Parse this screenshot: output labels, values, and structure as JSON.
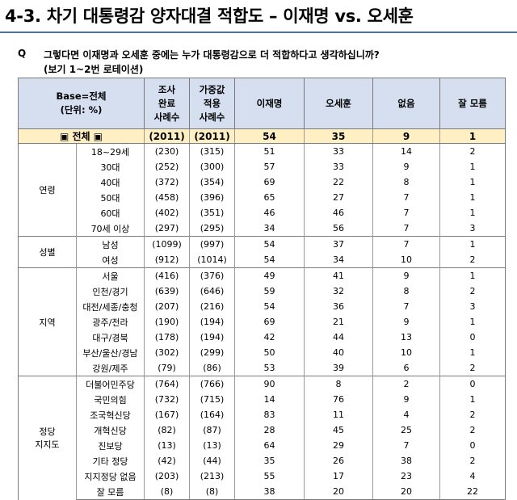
{
  "title": "4-3. 차기 대통령감 양자대결 적합도 – 이재명 vs. 오세훈",
  "question": {
    "marker": "Q",
    "text": "그렇다면 이재명과 오세훈 중에는 누가 대통령감으로 더 적합하다고 생각하십니까?",
    "note": "(보기 1~2번 로테이션)"
  },
  "header": {
    "base_line1": "Base=전체",
    "base_line2": "(단위: %)",
    "survey_l1": "조사",
    "survey_l2": "완료",
    "survey_l3": "사례수",
    "weighted_l1": "가중값",
    "weighted_l2": "적용",
    "weighted_l3": "사례수",
    "c1": "이재명",
    "c2": "오세훈",
    "c3": "없음",
    "c4": "잘 모름"
  },
  "total": {
    "label": "▣ 전체 ▣",
    "survey": "(2011)",
    "weighted": "(2011)",
    "v": [
      "54",
      "35",
      "9",
      "1"
    ]
  },
  "groups": {
    "age": "연령",
    "gender": "성별",
    "region": "지역",
    "party_l1": "정당",
    "party_l2": "지지도"
  },
  "rows": [
    {
      "label": "18~29세",
      "survey": "(230)",
      "weighted": "(315)",
      "v": [
        "51",
        "33",
        "14",
        "2"
      ]
    },
    {
      "label": "30대",
      "survey": "(252)",
      "weighted": "(300)",
      "v": [
        "57",
        "33",
        "9",
        "1"
      ]
    },
    {
      "label": "40대",
      "survey": "(372)",
      "weighted": "(354)",
      "v": [
        "69",
        "22",
        "8",
        "1"
      ]
    },
    {
      "label": "50대",
      "survey": "(458)",
      "weighted": "(396)",
      "v": [
        "65",
        "27",
        "7",
        "1"
      ]
    },
    {
      "label": "60대",
      "survey": "(402)",
      "weighted": "(351)",
      "v": [
        "46",
        "46",
        "7",
        "1"
      ]
    },
    {
      "label": "70세 이상",
      "survey": "(297)",
      "weighted": "(295)",
      "v": [
        "34",
        "56",
        "7",
        "3"
      ]
    },
    {
      "label": "남성",
      "survey": "(1099)",
      "weighted": "(997)",
      "v": [
        "54",
        "37",
        "7",
        "1"
      ]
    },
    {
      "label": "여성",
      "survey": "(912)",
      "weighted": "(1014)",
      "v": [
        "54",
        "34",
        "10",
        "2"
      ]
    },
    {
      "label": "서울",
      "survey": "(416)",
      "weighted": "(376)",
      "v": [
        "49",
        "41",
        "9",
        "1"
      ]
    },
    {
      "label": "인천/경기",
      "survey": "(639)",
      "weighted": "(646)",
      "v": [
        "59",
        "32",
        "8",
        "2"
      ]
    },
    {
      "label": "대전/세종/충청",
      "survey": "(207)",
      "weighted": "(216)",
      "v": [
        "54",
        "36",
        "7",
        "3"
      ]
    },
    {
      "label": "광주/전라",
      "survey": "(190)",
      "weighted": "(194)",
      "v": [
        "69",
        "21",
        "9",
        "1"
      ]
    },
    {
      "label": "대구/경북",
      "survey": "(178)",
      "weighted": "(194)",
      "v": [
        "42",
        "44",
        "13",
        "0"
      ]
    },
    {
      "label": "부산/울산/경남",
      "survey": "(302)",
      "weighted": "(299)",
      "v": [
        "50",
        "40",
        "10",
        "1"
      ]
    },
    {
      "label": "강원/제주",
      "survey": "(79)",
      "weighted": "(86)",
      "v": [
        "53",
        "39",
        "6",
        "2"
      ]
    },
    {
      "label": "더불어민주당",
      "survey": "(764)",
      "weighted": "(766)",
      "v": [
        "90",
        "8",
        "2",
        "0"
      ]
    },
    {
      "label": "국민의힘",
      "survey": "(732)",
      "weighted": "(715)",
      "v": [
        "14",
        "76",
        "9",
        "1"
      ]
    },
    {
      "label": "조국혁신당",
      "survey": "(167)",
      "weighted": "(164)",
      "v": [
        "83",
        "11",
        "4",
        "2"
      ]
    },
    {
      "label": "개혁신당",
      "survey": "(82)",
      "weighted": "(87)",
      "v": [
        "28",
        "45",
        "25",
        "2"
      ]
    },
    {
      "label": "진보당",
      "survey": "(13)",
      "weighted": "(13)",
      "v": [
        "64",
        "29",
        "7",
        "0"
      ]
    },
    {
      "label": "기타 정당",
      "survey": "(42)",
      "weighted": "(44)",
      "v": [
        "35",
        "26",
        "38",
        "2"
      ]
    },
    {
      "label": "지지정당 없음",
      "survey": "(203)",
      "weighted": "(213)",
      "v": [
        "55",
        "17",
        "23",
        "4"
      ]
    },
    {
      "label": "잘 모름",
      "survey": "(8)",
      "weighted": "(8)",
      "v": [
        "38",
        "20",
        "20",
        "22"
      ]
    }
  ]
}
